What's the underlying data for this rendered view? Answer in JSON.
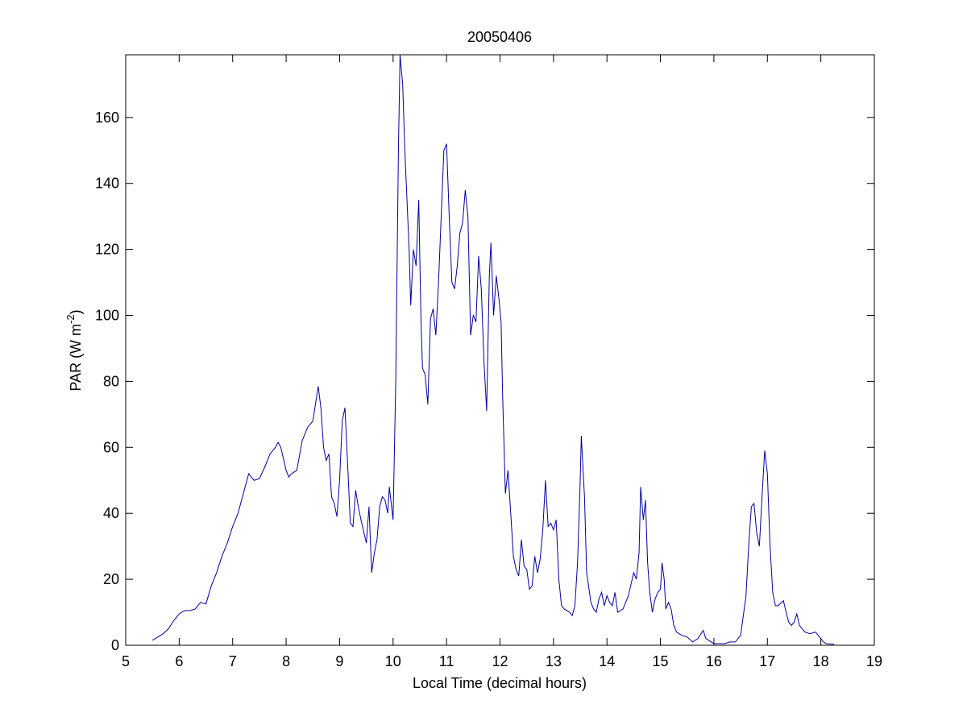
{
  "chart_data": {
    "type": "line",
    "title": "20050406",
    "xlabel": "Local Time (decimal hours)",
    "ylabel": [
      "PAR (W m",
      "-2",
      ")"
    ],
    "xlim": [
      5,
      19
    ],
    "xticks": [
      5,
      6,
      7,
      8,
      9,
      10,
      11,
      12,
      13,
      14,
      15,
      16,
      17,
      18,
      19
    ],
    "ylim": [
      0,
      179
    ],
    "yticks": [
      0,
      20,
      40,
      60,
      80,
      100,
      120,
      140,
      160
    ],
    "grid": false,
    "series": [
      {
        "color": "#0000a0",
        "x": [
          5.5,
          5.6,
          5.7,
          5.8,
          5.9,
          6.0,
          6.1,
          6.2,
          6.3,
          6.4,
          6.5,
          6.6,
          6.7,
          6.8,
          6.9,
          7.0,
          7.1,
          7.2,
          7.3,
          7.4,
          7.5,
          7.6,
          7.7,
          7.8,
          7.85,
          7.9,
          8.0,
          8.05,
          8.1,
          8.2,
          8.3,
          8.4,
          8.5,
          8.6,
          8.65,
          8.7,
          8.75,
          8.8,
          8.85,
          8.9,
          8.95,
          9.0,
          9.05,
          9.1,
          9.15,
          9.2,
          9.25,
          9.3,
          9.35,
          9.4,
          9.5,
          9.55,
          9.6,
          9.65,
          9.7,
          9.75,
          9.8,
          9.85,
          9.9,
          9.93,
          10.0,
          10.05,
          10.1,
          10.13,
          10.18,
          10.22,
          10.3,
          10.33,
          10.38,
          10.43,
          10.48,
          10.52,
          10.55,
          10.6,
          10.65,
          10.7,
          10.75,
          10.8,
          10.85,
          10.9,
          10.95,
          11.0,
          11.05,
          11.1,
          11.15,
          11.2,
          11.25,
          11.3,
          11.35,
          11.4,
          11.45,
          11.5,
          11.55,
          11.6,
          11.65,
          11.7,
          11.75,
          11.8,
          11.83,
          11.88,
          11.93,
          11.98,
          12.02,
          12.05,
          12.1,
          12.15,
          12.2,
          12.25,
          12.3,
          12.35,
          12.4,
          12.45,
          12.5,
          12.55,
          12.6,
          12.65,
          12.7,
          12.75,
          12.8,
          12.85,
          12.9,
          12.95,
          13.0,
          13.05,
          13.1,
          13.15,
          13.2,
          13.3,
          13.35,
          13.4,
          13.45,
          13.5,
          13.52,
          13.58,
          13.62,
          13.7,
          13.75,
          13.8,
          13.85,
          13.9,
          13.95,
          14.0,
          14.05,
          14.1,
          14.15,
          14.2,
          14.3,
          14.4,
          14.5,
          14.55,
          14.6,
          14.63,
          14.68,
          14.72,
          14.76,
          14.8,
          14.85,
          14.9,
          14.95,
          15.0,
          15.03,
          15.07,
          15.1,
          15.15,
          15.2,
          15.25,
          15.3,
          15.4,
          15.5,
          15.6,
          15.7,
          15.8,
          15.85,
          15.9,
          16.0,
          16.1,
          16.2,
          16.3,
          16.4,
          16.5,
          16.6,
          16.65,
          16.7,
          16.75,
          16.8,
          16.85,
          16.9,
          16.95,
          17.0,
          17.05,
          17.1,
          17.15,
          17.2,
          17.3,
          17.35,
          17.4,
          17.45,
          17.5,
          17.55,
          17.6,
          17.7,
          17.8,
          17.9,
          18.0,
          18.05,
          18.1,
          18.25
        ],
        "values": [
          1.5,
          2.5,
          3.5,
          5,
          7.5,
          9.5,
          10.5,
          10.5,
          11,
          13,
          12.5,
          18,
          22,
          27,
          31,
          36,
          40,
          46,
          52,
          50,
          50.5,
          54,
          58,
          60,
          61.5,
          60,
          53,
          51,
          52,
          53,
          62,
          66,
          68,
          78.5,
          72,
          60,
          56,
          58,
          45,
          43,
          39,
          50,
          68,
          72,
          55,
          37,
          36,
          47,
          42,
          38,
          31,
          42,
          22,
          28,
          32,
          42,
          45,
          44,
          40,
          48,
          38,
          80,
          150,
          179,
          170,
          150,
          120,
          103,
          120,
          115,
          135,
          100,
          84,
          82,
          73,
          99,
          102,
          94,
          110,
          130,
          150,
          152,
          130,
          110,
          108,
          115,
          125,
          128,
          138,
          130,
          94,
          100,
          98,
          118,
          108,
          86,
          71,
          112,
          122,
          100,
          112,
          105,
          98,
          75,
          46,
          53,
          40,
          27,
          23,
          21,
          32,
          24,
          23,
          17,
          18,
          27,
          22,
          26,
          35,
          50,
          36,
          37,
          35,
          38,
          20,
          12,
          11,
          10,
          9,
          12,
          25,
          50,
          63.5,
          45,
          22,
          13,
          11,
          10,
          14,
          16,
          12,
          15,
          13,
          12,
          16,
          10,
          11,
          15,
          22,
          20,
          28,
          48,
          38,
          44,
          25,
          16,
          10,
          14,
          16,
          17,
          25,
          20,
          11,
          13,
          11,
          6,
          4,
          3,
          2.5,
          1,
          2,
          4.5,
          2,
          1.5,
          0.5,
          0.5,
          0.5,
          1,
          1,
          3,
          15,
          30,
          42,
          43,
          34,
          30,
          45,
          59,
          52,
          30,
          16,
          12,
          12,
          13.5,
          10,
          7,
          6,
          7,
          9.5,
          6,
          4,
          3.5,
          4,
          2,
          1,
          0.5,
          0.3
        ]
      }
    ]
  }
}
